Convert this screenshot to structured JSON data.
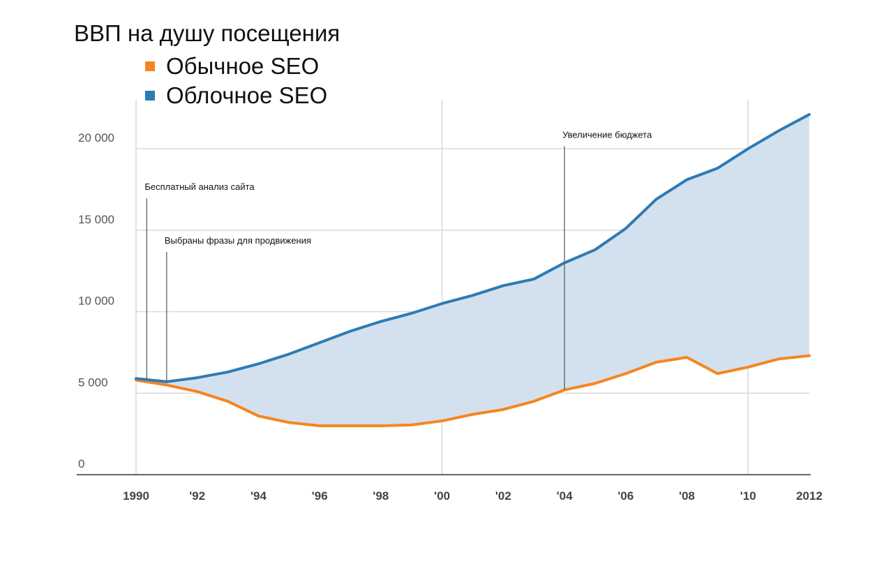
{
  "chart_data": {
    "type": "area",
    "title": "ВВП на душу посещения",
    "x": [
      1990,
      1991,
      1992,
      1993,
      1994,
      1995,
      1996,
      1997,
      1998,
      1999,
      2000,
      2001,
      2002,
      2003,
      2004,
      2005,
      2006,
      2007,
      2008,
      2009,
      2010,
      2011,
      2012
    ],
    "series": [
      {
        "name": "Обычное SEO",
        "color": "#f5861f",
        "values": [
          5800,
          5500,
          5100,
          4500,
          3600,
          3200,
          3000,
          3000,
          3000,
          3050,
          3300,
          3700,
          4000,
          4500,
          5200,
          5600,
          6200,
          6900,
          7200,
          6200,
          6600,
          7100,
          7300
        ]
      },
      {
        "name": "Облочное SEO",
        "color": "#2e7bb4",
        "values": [
          5900,
          5700,
          5950,
          6300,
          6800,
          7400,
          8100,
          8800,
          9400,
          9900,
          10500,
          11000,
          11600,
          12000,
          13000,
          13800,
          15100,
          16900,
          18100,
          18800,
          20000,
          21100,
          22100
        ]
      }
    ],
    "fill_color": "#d3e1ee",
    "ylim": [
      0,
      23000
    ],
    "xlim": [
      1990,
      2012
    ],
    "y_ticks": [
      {
        "value": 0,
        "label": "0"
      },
      {
        "value": 5000,
        "label": "5 000"
      },
      {
        "value": 10000,
        "label": "10 000"
      },
      {
        "value": 15000,
        "label": "15 000"
      },
      {
        "value": 20000,
        "label": "20 000"
      }
    ],
    "x_ticks": [
      {
        "value": 1990,
        "label": "1990"
      },
      {
        "value": 1992,
        "label": "'92"
      },
      {
        "value": 1994,
        "label": "'94"
      },
      {
        "value": 1996,
        "label": "'96"
      },
      {
        "value": 1998,
        "label": "'98"
      },
      {
        "value": 2000,
        "label": "'00"
      },
      {
        "value": 2002,
        "label": "'02"
      },
      {
        "value": 2004,
        "label": "'04"
      },
      {
        "value": 2006,
        "label": "'06"
      },
      {
        "value": 2008,
        "label": "'08"
      },
      {
        "value": 2010,
        "label": "'10"
      },
      {
        "value": 2012,
        "label": "2012"
      }
    ],
    "vertical_gridlines_at": [
      1990,
      2000,
      2010
    ],
    "annotations": [
      {
        "x": 1990.35,
        "y": 5860,
        "y_text": 17300,
        "text": "Бесплатный анализ сайта"
      },
      {
        "x": 1991.0,
        "y": 5700,
        "y_text": 14000,
        "text": "Выбраны фразы для продвижения"
      },
      {
        "x": 2004.0,
        "y": 5200,
        "y_text": 20500,
        "text": "Увеличение бюджета"
      }
    ],
    "grid": true,
    "legend_position": "top-left"
  }
}
